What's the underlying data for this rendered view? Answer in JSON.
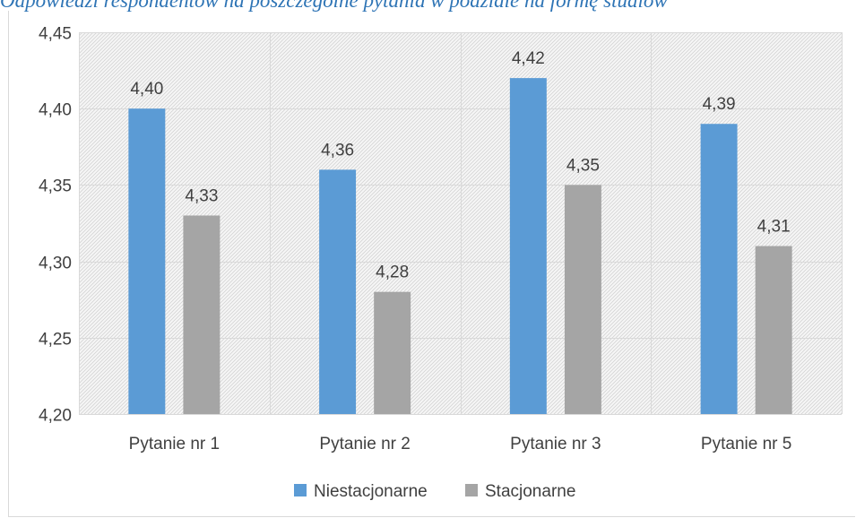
{
  "caption": "Odpowiedzi respondentów na poszczególne pytania w podziale na formę studiów",
  "chart_data": {
    "type": "bar",
    "categories": [
      "Pytanie nr 1",
      "Pytanie nr 2",
      "Pytanie nr 3",
      "Pytanie nr 5"
    ],
    "series": [
      {
        "name": "Niestacjonarne",
        "color": "#5b9bd5",
        "values": [
          4.4,
          4.36,
          4.42,
          4.39
        ],
        "labels": [
          "4,40",
          "4,36",
          "4,42",
          "4,39"
        ]
      },
      {
        "name": "Stacjonarne",
        "color": "#a5a5a5",
        "values": [
          4.33,
          4.28,
          4.35,
          4.31
        ],
        "labels": [
          "4,33",
          "4,28",
          "4,35",
          "4,31"
        ]
      }
    ],
    "ylim": [
      4.2,
      4.45
    ],
    "yticks": [
      4.2,
      4.25,
      4.3,
      4.35,
      4.4,
      4.45
    ],
    "ytick_labels": [
      "4,20",
      "4,25",
      "4,30",
      "4,35",
      "4,40",
      "4,45"
    ],
    "grid": true,
    "legend_position": "bottom"
  }
}
